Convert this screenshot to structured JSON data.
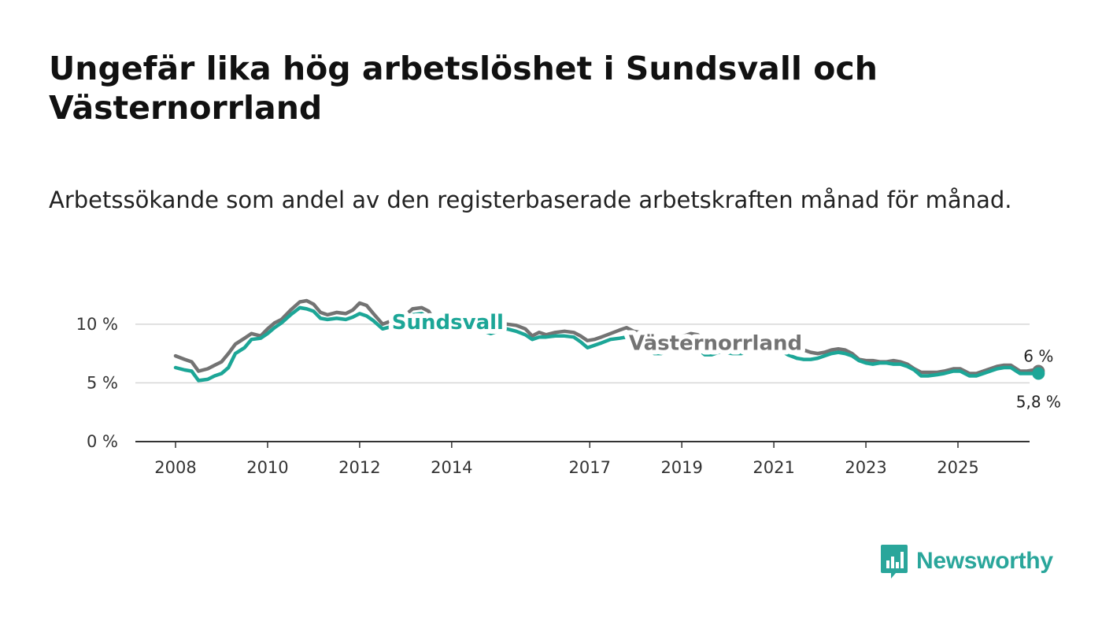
{
  "title": "Ungefär lika hög arbetslöshet i Sundsvall och Västernorrland",
  "subtitle": "Arbetssökande som andel av den registerbaserade arbetskraften månad för månad.",
  "brand": {
    "name": "Newsworthy",
    "icon": "newsworthy-logo-icon",
    "color": "#2aa69b"
  },
  "chart_data": {
    "type": "line",
    "title": "Ungefär lika hög arbetslöshet i Sundsvall och Västernorrland",
    "xlabel": "",
    "ylabel": "",
    "ylim": [
      0,
      12
    ],
    "xlim": [
      2008.0,
      2025.8
    ],
    "grid": true,
    "y_ticks": [
      0,
      5,
      10
    ],
    "y_tick_labels": [
      "0 %",
      "5 %",
      "10 %"
    ],
    "x_ticks": [
      2008,
      2010,
      2012,
      2014,
      2017,
      2019,
      2021,
      2023,
      2025
    ],
    "x_tick_labels": [
      "2008",
      "2010",
      "2012",
      "2014",
      "2017",
      "2019",
      "2021",
      "2023",
      "2025"
    ],
    "series": [
      {
        "name": "Västernorrland",
        "color": "#737373",
        "end_label": "6 %",
        "points": [
          [
            2008.0,
            7.3
          ],
          [
            2008.2,
            7.0
          ],
          [
            2008.35,
            6.8
          ],
          [
            2008.5,
            6.0
          ],
          [
            2008.7,
            6.2
          ],
          [
            2008.85,
            6.5
          ],
          [
            2009.0,
            6.8
          ],
          [
            2009.15,
            7.5
          ],
          [
            2009.3,
            8.3
          ],
          [
            2009.5,
            8.8
          ],
          [
            2009.65,
            9.2
          ],
          [
            2009.85,
            9.0
          ],
          [
            2010.0,
            9.6
          ],
          [
            2010.15,
            10.1
          ],
          [
            2010.3,
            10.4
          ],
          [
            2010.5,
            11.2
          ],
          [
            2010.7,
            11.9
          ],
          [
            2010.85,
            12.0
          ],
          [
            2011.0,
            11.7
          ],
          [
            2011.15,
            11.0
          ],
          [
            2011.3,
            10.8
          ],
          [
            2011.5,
            11.0
          ],
          [
            2011.7,
            10.9
          ],
          [
            2011.85,
            11.2
          ],
          [
            2012.0,
            11.8
          ],
          [
            2012.15,
            11.6
          ],
          [
            2012.3,
            10.9
          ],
          [
            2012.5,
            10.0
          ],
          [
            2012.7,
            10.3
          ],
          [
            2012.85,
            10.5
          ],
          [
            2013.0,
            10.8
          ],
          [
            2013.15,
            11.3
          ],
          [
            2013.35,
            11.4
          ],
          [
            2013.5,
            11.1
          ],
          [
            2013.65,
            10.1
          ],
          [
            2013.8,
            9.7
          ],
          [
            2013.95,
            9.8
          ],
          [
            2014.1,
            10.3
          ],
          [
            2014.3,
            10.4
          ],
          [
            2014.5,
            10.2
          ],
          [
            2014.7,
            9.8
          ],
          [
            2014.85,
            9.6
          ],
          [
            2015.0,
            9.8
          ],
          [
            2015.2,
            10.0
          ],
          [
            2015.4,
            9.9
          ],
          [
            2015.6,
            9.6
          ],
          [
            2015.75,
            9.0
          ],
          [
            2015.9,
            9.3
          ],
          [
            2016.05,
            9.1
          ],
          [
            2016.25,
            9.3
          ],
          [
            2016.45,
            9.4
          ],
          [
            2016.65,
            9.3
          ],
          [
            2016.8,
            9.0
          ],
          [
            2016.95,
            8.6
          ],
          [
            2017.1,
            8.7
          ],
          [
            2017.25,
            8.9
          ],
          [
            2017.45,
            9.2
          ],
          [
            2017.65,
            9.5
          ],
          [
            2017.8,
            9.7
          ],
          [
            2017.95,
            9.4
          ],
          [
            2018.1,
            9.3
          ],
          [
            2018.25,
            8.9
          ],
          [
            2018.4,
            8.2
          ],
          [
            2018.55,
            8.3
          ],
          [
            2018.7,
            8.6
          ],
          [
            2018.9,
            8.8
          ],
          [
            2019.05,
            9.0
          ],
          [
            2019.2,
            9.2
          ],
          [
            2019.35,
            9.1
          ],
          [
            2019.5,
            8.5
          ],
          [
            2019.65,
            8.4
          ],
          [
            2019.8,
            8.7
          ],
          [
            2019.95,
            8.6
          ],
          [
            2020.1,
            8.5
          ],
          [
            2020.3,
            8.4
          ],
          [
            2020.5,
            8.6
          ],
          [
            2020.7,
            8.7
          ],
          [
            2020.9,
            8.8
          ],
          [
            2021.1,
            8.6
          ],
          [
            2021.3,
            8.3
          ],
          [
            2021.5,
            8.0
          ],
          [
            2021.65,
            7.8
          ],
          [
            2021.8,
            7.6
          ],
          [
            2021.95,
            7.5
          ],
          [
            2022.1,
            7.6
          ],
          [
            2022.25,
            7.8
          ],
          [
            2022.4,
            7.9
          ],
          [
            2022.55,
            7.8
          ],
          [
            2022.7,
            7.5
          ],
          [
            2022.85,
            7.0
          ],
          [
            2023.0,
            6.9
          ],
          [
            2023.15,
            6.9
          ],
          [
            2023.3,
            6.8
          ],
          [
            2023.45,
            6.8
          ],
          [
            2023.6,
            6.9
          ],
          [
            2023.75,
            6.8
          ],
          [
            2023.9,
            6.6
          ],
          [
            2024.05,
            6.2
          ],
          [
            2024.2,
            5.9
          ],
          [
            2024.35,
            5.9
          ],
          [
            2024.55,
            5.9
          ],
          [
            2024.7,
            6.0
          ],
          [
            2024.9,
            6.2
          ],
          [
            2025.05,
            6.2
          ],
          [
            2025.25,
            5.8
          ],
          [
            2025.4,
            5.8
          ],
          [
            2025.55,
            6.0
          ],
          [
            2025.7,
            6.2
          ],
          [
            2025.85,
            6.4
          ],
          [
            2026.0,
            6.5
          ],
          [
            2026.15,
            6.5
          ],
          [
            2026.35,
            6.0
          ],
          [
            2026.5,
            6.0
          ],
          [
            2026.65,
            6.1
          ],
          [
            2026.75,
            6.0
          ]
        ]
      },
      {
        "name": "Sundsvall",
        "color": "#1ca697",
        "end_label": "5,8 %",
        "points": [
          [
            2008.0,
            6.3
          ],
          [
            2008.2,
            6.1
          ],
          [
            2008.35,
            6.0
          ],
          [
            2008.5,
            5.2
          ],
          [
            2008.7,
            5.3
          ],
          [
            2008.85,
            5.6
          ],
          [
            2009.0,
            5.8
          ],
          [
            2009.15,
            6.3
          ],
          [
            2009.3,
            7.5
          ],
          [
            2009.5,
            8.0
          ],
          [
            2009.65,
            8.7
          ],
          [
            2009.85,
            8.8
          ],
          [
            2010.0,
            9.2
          ],
          [
            2010.15,
            9.7
          ],
          [
            2010.3,
            10.1
          ],
          [
            2010.5,
            10.8
          ],
          [
            2010.7,
            11.4
          ],
          [
            2010.85,
            11.3
          ],
          [
            2011.0,
            11.1
          ],
          [
            2011.15,
            10.5
          ],
          [
            2011.3,
            10.4
          ],
          [
            2011.5,
            10.5
          ],
          [
            2011.7,
            10.4
          ],
          [
            2011.85,
            10.6
          ],
          [
            2012.0,
            10.9
          ],
          [
            2012.15,
            10.7
          ],
          [
            2012.3,
            10.3
          ],
          [
            2012.5,
            9.6
          ],
          [
            2012.7,
            9.8
          ],
          [
            2012.85,
            10.0
          ],
          [
            2013.0,
            10.3
          ],
          [
            2013.15,
            10.8
          ],
          [
            2013.35,
            10.9
          ],
          [
            2013.5,
            10.5
          ],
          [
            2013.65,
            9.7
          ],
          [
            2013.8,
            9.4
          ],
          [
            2013.95,
            9.5
          ],
          [
            2014.1,
            9.9
          ],
          [
            2014.3,
            10.0
          ],
          [
            2014.5,
            9.8
          ],
          [
            2014.7,
            9.4
          ],
          [
            2014.85,
            9.2
          ],
          [
            2015.0,
            9.4
          ],
          [
            2015.2,
            9.6
          ],
          [
            2015.4,
            9.4
          ],
          [
            2015.6,
            9.1
          ],
          [
            2015.75,
            8.7
          ],
          [
            2015.9,
            8.9
          ],
          [
            2016.05,
            8.9
          ],
          [
            2016.25,
            9.0
          ],
          [
            2016.45,
            9.0
          ],
          [
            2016.65,
            8.9
          ],
          [
            2016.8,
            8.5
          ],
          [
            2016.95,
            8.0
          ],
          [
            2017.1,
            8.2
          ],
          [
            2017.25,
            8.4
          ],
          [
            2017.45,
            8.7
          ],
          [
            2017.65,
            8.8
          ],
          [
            2017.8,
            8.9
          ],
          [
            2017.95,
            8.7
          ],
          [
            2018.1,
            8.5
          ],
          [
            2018.25,
            7.9
          ],
          [
            2018.4,
            7.5
          ],
          [
            2018.55,
            7.5
          ],
          [
            2018.7,
            7.7
          ],
          [
            2018.9,
            7.9
          ],
          [
            2019.05,
            7.9
          ],
          [
            2019.2,
            8.0
          ],
          [
            2019.35,
            7.9
          ],
          [
            2019.5,
            7.4
          ],
          [
            2019.65,
            7.4
          ],
          [
            2019.8,
            7.6
          ],
          [
            2019.95,
            7.6
          ],
          [
            2020.1,
            7.5
          ],
          [
            2020.3,
            7.5
          ],
          [
            2020.5,
            7.9
          ],
          [
            2020.7,
            8.1
          ],
          [
            2020.9,
            8.2
          ],
          [
            2021.1,
            7.9
          ],
          [
            2021.3,
            7.4
          ],
          [
            2021.5,
            7.1
          ],
          [
            2021.65,
            7.0
          ],
          [
            2021.8,
            7.0
          ],
          [
            2021.95,
            7.1
          ],
          [
            2022.1,
            7.3
          ],
          [
            2022.25,
            7.5
          ],
          [
            2022.4,
            7.6
          ],
          [
            2022.55,
            7.5
          ],
          [
            2022.7,
            7.3
          ],
          [
            2022.85,
            6.9
          ],
          [
            2023.0,
            6.7
          ],
          [
            2023.15,
            6.6
          ],
          [
            2023.3,
            6.7
          ],
          [
            2023.45,
            6.7
          ],
          [
            2023.6,
            6.6
          ],
          [
            2023.75,
            6.6
          ],
          [
            2023.9,
            6.4
          ],
          [
            2024.05,
            6.1
          ],
          [
            2024.2,
            5.6
          ],
          [
            2024.35,
            5.6
          ],
          [
            2024.55,
            5.7
          ],
          [
            2024.7,
            5.8
          ],
          [
            2024.9,
            6.0
          ],
          [
            2025.05,
            6.0
          ],
          [
            2025.25,
            5.6
          ],
          [
            2025.4,
            5.6
          ],
          [
            2025.55,
            5.8
          ],
          [
            2025.7,
            6.0
          ],
          [
            2025.85,
            6.2
          ],
          [
            2026.0,
            6.3
          ],
          [
            2026.15,
            6.3
          ],
          [
            2026.35,
            5.8
          ],
          [
            2026.5,
            5.8
          ],
          [
            2026.65,
            5.8
          ],
          [
            2026.75,
            5.8
          ]
        ]
      }
    ]
  }
}
